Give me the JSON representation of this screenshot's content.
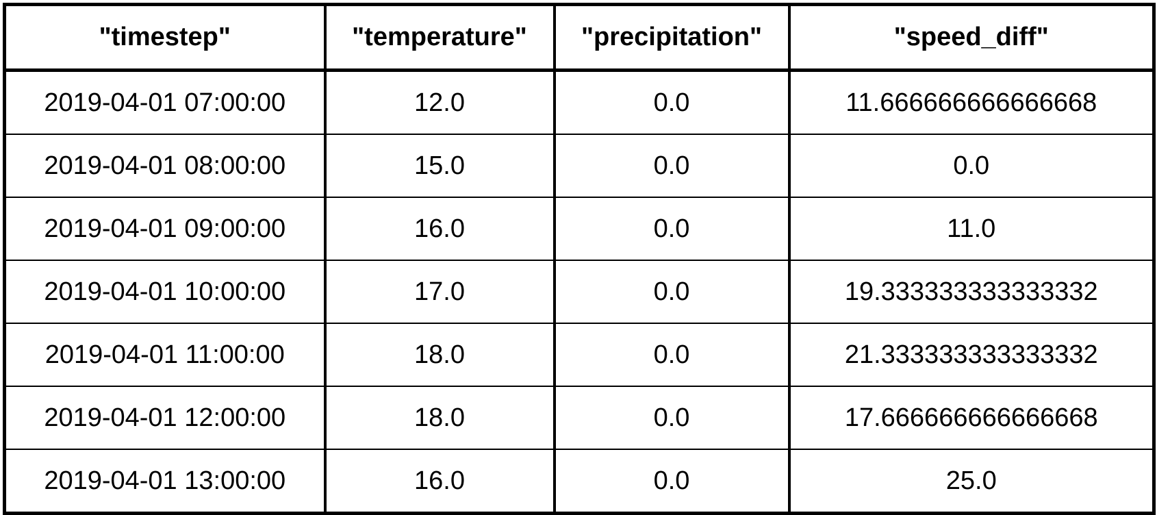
{
  "chart_data": {
    "type": "table",
    "columns": [
      "\"timestep\"",
      "\"temperature\"",
      "\"precipitation\"",
      "\"speed_diff\""
    ],
    "rows": [
      [
        "2019-04-01 07:00:00",
        "12.0",
        "0.0",
        "11.666666666666668"
      ],
      [
        "2019-04-01 08:00:00",
        "15.0",
        "0.0",
        "0.0"
      ],
      [
        "2019-04-01 09:00:00",
        "16.0",
        "0.0",
        "11.0"
      ],
      [
        "2019-04-01 10:00:00",
        "17.0",
        "0.0",
        "19.333333333333332"
      ],
      [
        "2019-04-01 11:00:00",
        "18.0",
        "0.0",
        "21.333333333333332"
      ],
      [
        "2019-04-01 12:00:00",
        "18.0",
        "0.0",
        "17.666666666666668"
      ],
      [
        "2019-04-01 13:00:00",
        "16.0",
        "0.0",
        "25.0"
      ]
    ]
  }
}
